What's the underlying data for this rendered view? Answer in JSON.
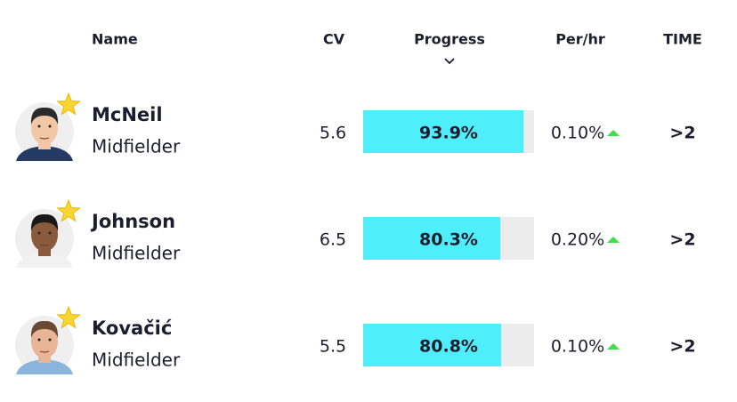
{
  "header": {
    "name": "Name",
    "cv": "CV",
    "progress": "Progress",
    "per_hr": "Per/hr",
    "time": "TIME"
  },
  "rows": [
    {
      "name": "McNeil",
      "position": "Midfielder",
      "cv": 5.6,
      "progress": {
        "value": 93.9,
        "label": "93.9%"
      },
      "per_hr": "0.10%",
      "time": ">2"
    },
    {
      "name": "Johnson",
      "position": "Midfielder",
      "cv": 6.5,
      "progress": {
        "value": 80.3,
        "label": "80.3%"
      },
      "per_hr": "0.20%",
      "time": ">2"
    },
    {
      "name": "Kovačić",
      "position": "Midfielder",
      "cv": 5.5,
      "progress": {
        "value": 80.8,
        "label": "80.8%"
      },
      "per_hr": "0.10%",
      "time": ">2"
    }
  ]
}
